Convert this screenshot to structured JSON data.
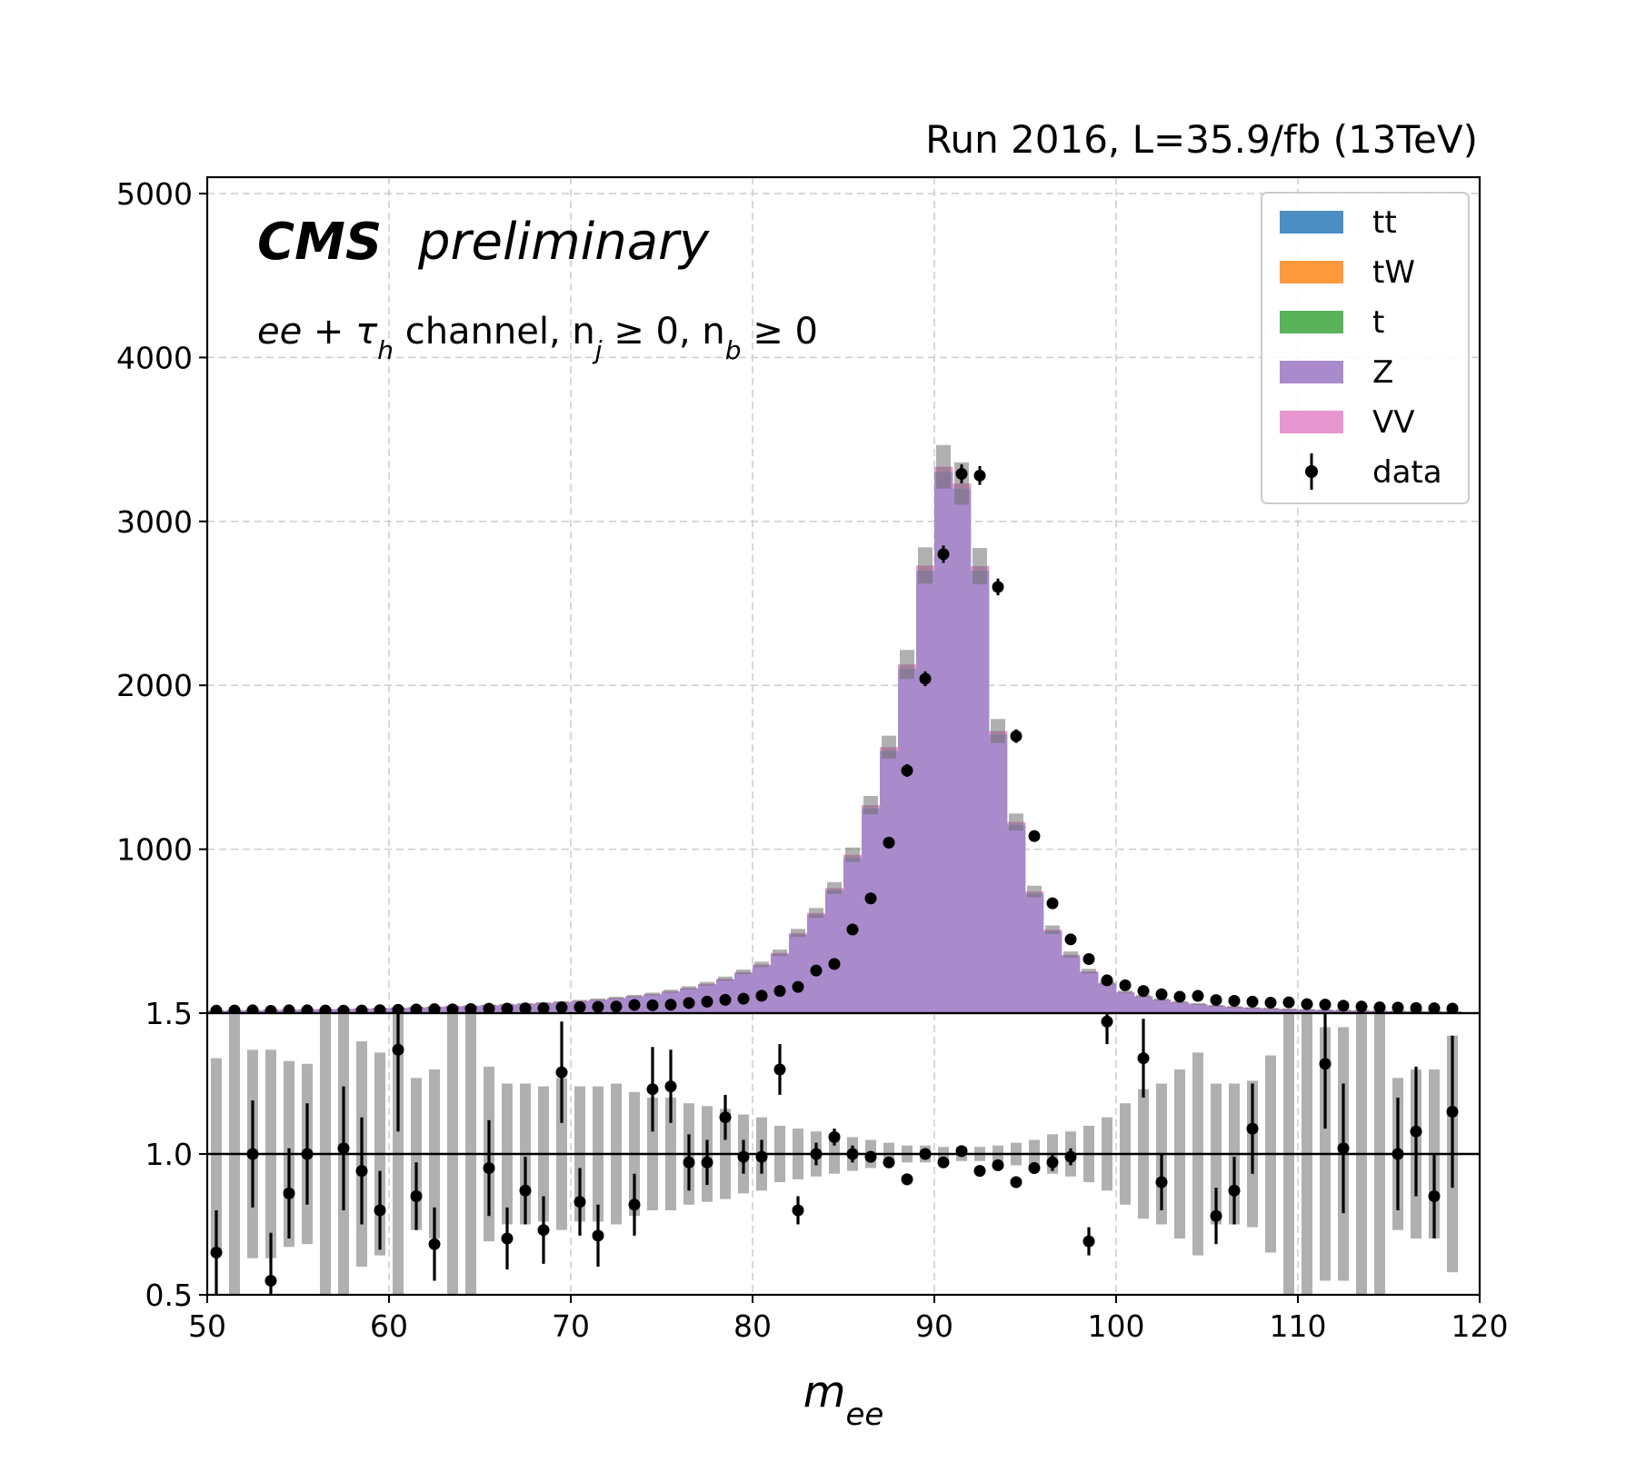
{
  "chart_data": [
    {
      "type": "bar",
      "subtype": "stacked-histogram-with-data-points",
      "header": "Run 2016, L=35.9/fb (13TeV)",
      "label_bold": "CMS",
      "label_italic": "preliminary",
      "channel": {
        "prefix": "ee + τ",
        "subscript": "h",
        "middle": " channel, n",
        "nj_sub": "j",
        "middle2": " ≥ 0, n",
        "nb_sub": "b",
        "suffix": " ≥ 0"
      },
      "xlim": [
        50,
        120
      ],
      "ylim": [
        0,
        5100
      ],
      "grid": true,
      "legend_placement": "top-right",
      "x_ticks": [
        "50",
        "60",
        "70",
        "80",
        "90",
        "100",
        "110",
        "120"
      ],
      "y_ticks": [
        {
          "value": 1000,
          "label": "1000"
        },
        {
          "value": 2000,
          "label": "2000"
        },
        {
          "value": 3000,
          "label": "3000"
        },
        {
          "value": 4000,
          "label": "4000"
        },
        {
          "value": 5000,
          "label": "5000"
        }
      ],
      "bin_edges": [
        50,
        51,
        52,
        53,
        54,
        55,
        56,
        57,
        58,
        59,
        60,
        61,
        62,
        63,
        64,
        65,
        66,
        67,
        68,
        69,
        70,
        71,
        72,
        73,
        74,
        75,
        76,
        77,
        78,
        79,
        80,
        81,
        82,
        83,
        84,
        85,
        86,
        87,
        88,
        89,
        90,
        91,
        92,
        93,
        94,
        95,
        96,
        97,
        98,
        99,
        100,
        101,
        102,
        103,
        104,
        105,
        106,
        107,
        108,
        109,
        110,
        111,
        112,
        113,
        114,
        115,
        116,
        117,
        118,
        119
      ],
      "series": [
        {
          "name": "tt",
          "color": "#4c8ec4",
          "values": [
            1,
            1,
            1,
            1,
            1,
            1,
            1,
            1,
            1,
            1,
            1,
            1,
            1,
            1,
            1,
            1,
            1,
            1,
            1,
            1,
            1,
            1,
            1,
            1,
            1,
            1,
            1,
            1,
            1,
            1,
            1,
            1,
            1,
            1,
            1,
            1,
            1,
            1,
            1,
            1,
            1,
            1,
            1,
            1,
            1,
            1,
            1,
            1,
            1,
            1,
            1,
            1,
            1,
            1,
            1,
            1,
            1,
            1,
            1,
            1,
            1,
            1,
            1,
            1,
            1,
            1,
            1,
            1,
            1
          ]
        },
        {
          "name": "tW",
          "color": "#ff9a3c",
          "values": [
            0,
            0,
            0,
            0,
            0,
            0,
            0,
            0,
            0,
            0,
            0,
            0,
            0,
            0,
            0,
            0,
            0,
            0,
            0,
            0,
            0,
            0,
            0,
            0,
            0,
            0,
            0,
            0,
            0,
            0,
            0,
            0,
            0,
            0,
            0,
            0,
            0,
            0,
            0,
            0,
            0,
            0,
            0,
            0,
            0,
            0,
            0,
            0,
            0,
            0,
            0,
            0,
            0,
            0,
            0,
            0,
            0,
            0,
            0,
            0,
            0,
            0,
            0,
            0,
            0,
            0,
            0,
            0,
            0
          ]
        },
        {
          "name": "t",
          "color": "#5ab35a",
          "values": [
            0,
            0,
            0,
            0,
            0,
            0,
            0,
            0,
            0,
            0,
            0,
            0,
            0,
            0,
            0,
            0,
            0,
            0,
            0,
            0,
            0,
            0,
            0,
            0,
            0,
            0,
            0,
            0,
            0,
            0,
            0,
            0,
            0,
            0,
            0,
            0,
            0,
            0,
            0,
            0,
            0,
            0,
            0,
            0,
            0,
            0,
            0,
            0,
            0,
            0,
            0,
            0,
            0,
            0,
            0,
            0,
            0,
            0,
            0,
            0,
            0,
            0,
            0,
            0,
            0,
            0,
            0,
            0,
            0
          ]
        },
        {
          "name": "Z",
          "color": "#a98bcb",
          "values": [
            13,
            15,
            16,
            18,
            19,
            21,
            22,
            24,
            26,
            28,
            30,
            33,
            36,
            39,
            42,
            46,
            50,
            55,
            60,
            66,
            73,
            80,
            90,
            101,
            114,
            130,
            150,
            175,
            205,
            245,
            290,
            360,
            480,
            600,
            750,
            950,
            1250,
            1600,
            2100,
            2700,
            3300,
            3200,
            2700,
            1700,
            1150,
            730,
            500,
            350,
            250,
            180,
            125,
            100,
            80,
            65,
            53,
            44,
            37,
            31,
            27,
            23,
            20,
            18,
            16,
            14,
            12,
            11,
            10,
            9,
            8
          ]
        },
        {
          "name": "VV",
          "color": "#e896cf",
          "values": [
            1,
            1,
            1,
            1,
            1,
            1,
            1,
            1,
            1,
            1,
            1,
            1,
            1,
            1,
            1,
            1,
            1,
            1,
            1,
            1,
            1,
            2,
            2,
            2,
            2,
            3,
            3,
            3,
            4,
            5,
            6,
            7,
            8,
            10,
            12,
            15,
            18,
            22,
            26,
            30,
            32,
            30,
            26,
            20,
            15,
            11,
            8,
            6,
            5,
            4,
            3,
            3,
            2,
            2,
            2,
            1,
            1,
            1,
            1,
            1,
            1,
            1,
            1,
            1,
            1,
            1,
            1,
            1,
            1
          ]
        }
      ],
      "data": {
        "name": "data",
        "values": [
          15,
          16,
          17,
          14,
          17,
          17,
          16,
          15,
          16,
          18,
          20,
          22,
          24,
          23,
          25,
          27,
          28,
          29,
          30,
          35,
          37,
          38,
          40,
          50,
          48,
          51,
          62,
          70,
          81,
          88,
          106,
          135,
          160,
          260,
          300,
          510,
          700,
          1040,
          1480,
          2040,
          2800,
          3290,
          3280,
          2600,
          1690,
          1080,
          670,
          450,
          330,
          200,
          170,
          135,
          115,
          100,
          105,
          80,
          75,
          70,
          64,
          66,
          55,
          52,
          45,
          40,
          35,
          34,
          31,
          30,
          28
        ]
      },
      "ratio": {
        "ylim": [
          0.5,
          1.5
        ],
        "y_ticks": [
          "0.5",
          "1.0",
          "1.5"
        ],
        "reference": 1.0,
        "values": [
          0.65,
          null,
          1.0,
          0.55,
          0.86,
          1.0,
          null,
          1.02,
          0.94,
          0.8,
          1.37,
          0.85,
          0.68,
          null,
          null,
          0.95,
          0.7,
          0.87,
          0.73,
          1.29,
          0.83,
          0.71,
          null,
          0.82,
          1.23,
          1.24,
          0.97,
          0.97,
          1.13,
          0.99,
          0.99,
          1.3,
          0.8,
          1.0,
          1.06,
          1.0,
          0.99,
          0.97,
          0.91,
          1.0,
          0.97,
          1.01,
          0.94,
          0.96,
          0.9,
          0.95,
          0.97,
          0.99,
          0.69,
          1.47,
          null,
          1.34,
          0.9,
          null,
          null,
          0.78,
          0.87,
          1.09,
          null,
          null,
          null,
          1.32,
          1.02,
          null,
          null,
          1.0,
          1.08,
          0.85,
          1.15
        ],
        "errors": [
          0.15,
          null,
          0.19,
          0.17,
          0.16,
          0.18,
          null,
          0.22,
          0.19,
          0.14,
          0.29,
          0.12,
          0.13,
          null,
          null,
          0.17,
          0.11,
          0.12,
          0.12,
          0.18,
          0.12,
          0.11,
          null,
          0.11,
          0.15,
          0.13,
          0.1,
          0.08,
          0.08,
          0.06,
          0.06,
          0.09,
          0.05,
          0.04,
          0.03,
          0.03,
          0.02,
          0.02,
          0.02,
          0.015,
          0.015,
          0.015,
          0.015,
          0.015,
          0.02,
          0.02,
          0.03,
          0.03,
          0.05,
          0.08,
          null,
          0.14,
          0.1,
          null,
          null,
          0.1,
          0.12,
          0.16,
          null,
          null,
          null,
          0.23,
          0.23,
          null,
          null,
          0.2,
          0.23,
          0.15,
          0.27
        ],
        "mc_unc": [
          0.34,
          0.6,
          0.37,
          0.37,
          0.33,
          0.32,
          0.6,
          0.5,
          0.4,
          0.36,
          0.55,
          0.27,
          0.3,
          0.6,
          0.6,
          0.31,
          0.25,
          0.25,
          0.24,
          0.27,
          0.24,
          0.24,
          0.25,
          0.22,
          0.2,
          0.2,
          0.18,
          0.17,
          0.16,
          0.14,
          0.13,
          0.1,
          0.09,
          0.08,
          0.07,
          0.06,
          0.05,
          0.04,
          0.03,
          0.03,
          0.025,
          0.025,
          0.025,
          0.03,
          0.04,
          0.05,
          0.07,
          0.08,
          0.1,
          0.13,
          0.18,
          0.23,
          0.25,
          0.3,
          0.36,
          0.25,
          0.25,
          0.26,
          0.35,
          0.5,
          0.5,
          0.45,
          0.45,
          0.5,
          0.5,
          0.27,
          0.3,
          0.3,
          0.42
        ]
      },
      "xlabel": {
        "base": "m",
        "sub": "ee"
      }
    }
  ]
}
